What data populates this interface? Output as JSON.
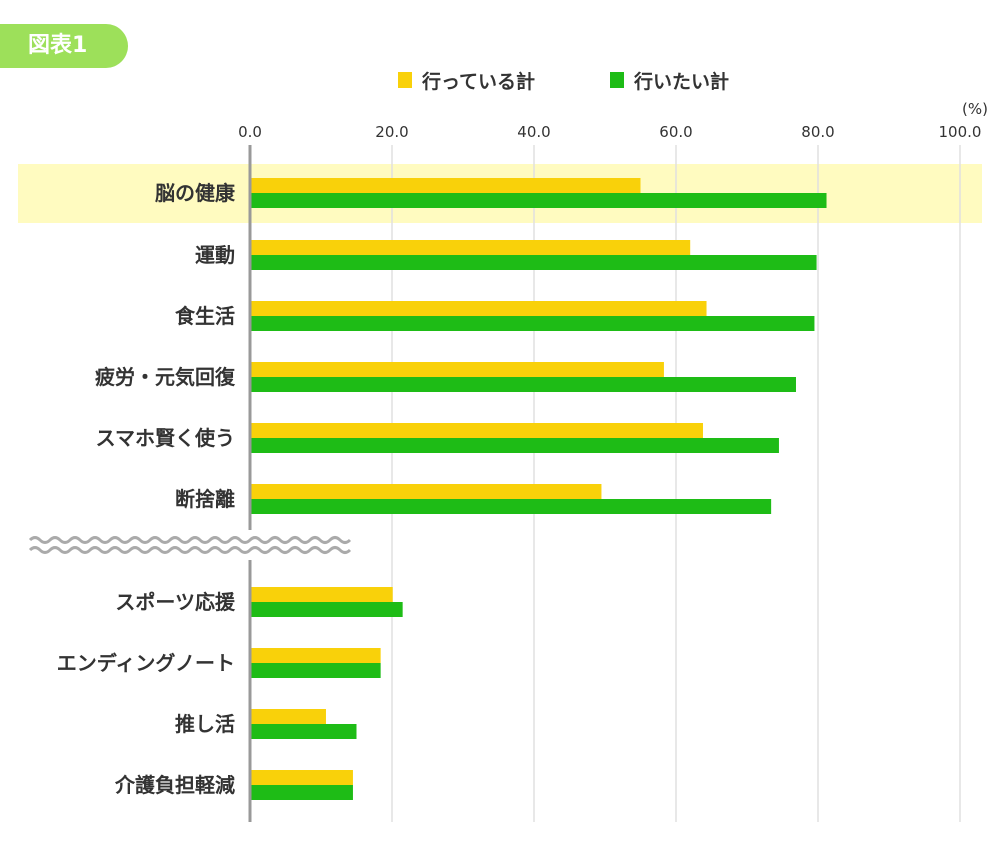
{
  "badge": "図表1",
  "chart_data": {
    "type": "bar",
    "orientation": "horizontal",
    "unit_label": "(%)",
    "xlim": [
      0,
      100
    ],
    "ticks": [
      "0.0",
      "20.0",
      "40.0",
      "60.0",
      "80.0",
      "100.0"
    ],
    "grid": true,
    "legend_position": "top",
    "highlighted_category": "脳の健康",
    "axis_break_after": "断捨離",
    "categories": [
      "脳の健康",
      "運動",
      "食生活",
      "疲労・元気回復",
      "スマホ賢く使う",
      "断捨離",
      "スポーツ応援",
      "エンディングノート",
      "推し活",
      "介護負担軽減"
    ],
    "series": [
      {
        "name": "行っている計",
        "color": "#f9d10a",
        "values": [
          55.0,
          62.0,
          64.3,
          58.3,
          63.8,
          49.5,
          20.1,
          18.4,
          10.7,
          14.5
        ]
      },
      {
        "name": "行いたい計",
        "color": "#1ebc16",
        "values": [
          81.2,
          79.8,
          79.5,
          76.9,
          74.5,
          73.4,
          21.5,
          18.4,
          15.0,
          14.5
        ]
      }
    ],
    "highlight_color": "#fffbc0"
  }
}
